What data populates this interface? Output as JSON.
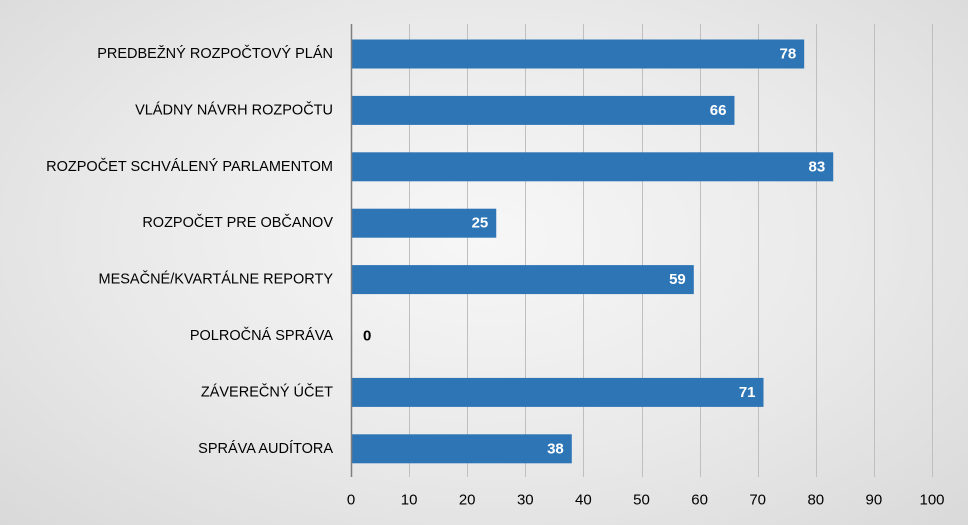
{
  "chart_data": {
    "type": "bar",
    "orientation": "horizontal",
    "categories": [
      "PREDBEŽNÝ ROZPOČTOVÝ PLÁN",
      "VLÁDNY NÁVRH ROZPOČTU",
      "ROZPOČET SCHVÁLENÝ PARLAMENTOM",
      "ROZPOČET PRE OBČANOV",
      "MESAČNÉ/KVARTÁLNE REPORTY",
      "POLROČNÁ SPRÁVA",
      "ZÁVEREČNÝ ÚČET",
      "SPRÁVA AUDÍTORA"
    ],
    "values": [
      78,
      66,
      83,
      25,
      59,
      0,
      71,
      38
    ],
    "xlim": [
      0,
      100
    ],
    "xticks": [
      0,
      10,
      20,
      30,
      40,
      50,
      60,
      70,
      80,
      90,
      100
    ],
    "grid": "vertical",
    "legend": "none",
    "title": "",
    "xlabel": "",
    "ylabel": "",
    "colors": {
      "bar": "#2e75b6",
      "label_inside": "#ffffff",
      "label_outside": "#000000",
      "grid": "#bfbfbf",
      "axis": "#7f7f7f"
    }
  }
}
